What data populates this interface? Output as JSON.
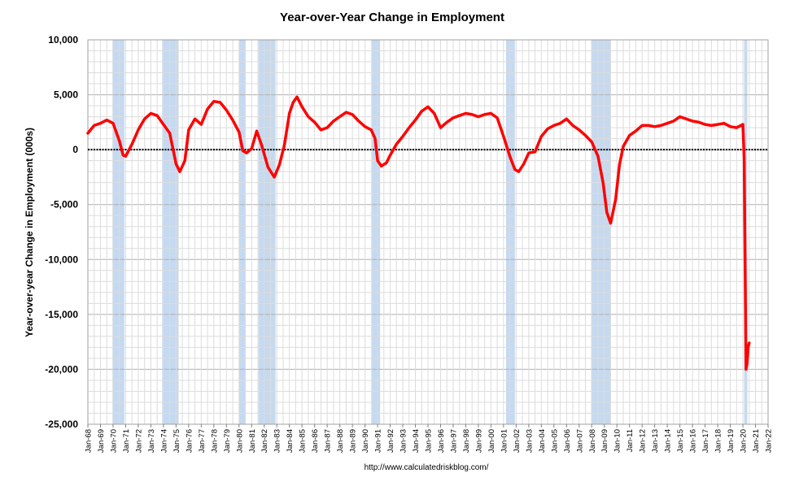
{
  "chart_data": {
    "type": "line",
    "title": "Year-over-Year Change in Employment",
    "ylabel": "Year-over-year Change in Employment (000s)",
    "xlabel": "",
    "source": "http://www.calculatedriskblog.com/",
    "ylim": [
      -25000,
      10000
    ],
    "yticks": [
      10000,
      5000,
      0,
      -5000,
      -10000,
      -15000,
      -20000,
      -25000
    ],
    "ytick_labels": [
      "10,000",
      "5,000",
      "0",
      "-5,000",
      "-10,000",
      "-15,000",
      "-20,000",
      "-25,000"
    ],
    "xlim": [
      1968.0,
      2022.0
    ],
    "xtick_years": [
      1968,
      1969,
      1970,
      1971,
      1972,
      1973,
      1974,
      1975,
      1976,
      1977,
      1978,
      1979,
      1980,
      1981,
      1982,
      1983,
      1984,
      1985,
      1986,
      1987,
      1988,
      1989,
      1990,
      1991,
      1992,
      1993,
      1994,
      1995,
      1996,
      1997,
      1998,
      1999,
      2000,
      2001,
      2002,
      2003,
      2004,
      2005,
      2006,
      2007,
      2008,
      2009,
      2010,
      2011,
      2012,
      2013,
      2014,
      2015,
      2016,
      2017,
      2018,
      2019,
      2020,
      2021,
      2022
    ],
    "xtick_labels": [
      "Jan-68",
      "Jan-69",
      "Jan-70",
      "Jan-71",
      "Jan-72",
      "Jan-73",
      "Jan-74",
      "Jan-75",
      "Jan-76",
      "Jan-77",
      "Jan-78",
      "Jan-79",
      "Jan-80",
      "Jan-81",
      "Jan-82",
      "Jan-83",
      "Jan-84",
      "Jan-85",
      "Jan-86",
      "Jan-87",
      "Jan-88",
      "Jan-89",
      "Jan-90",
      "Jan-91",
      "Jan-92",
      "Jan-93",
      "Jan-94",
      "Jan-95",
      "Jan-96",
      "Jan-97",
      "Jan-98",
      "Jan-99",
      "Jan-00",
      "Jan-01",
      "Jan-02",
      "Jan-03",
      "Jan-04",
      "Jan-05",
      "Jan-06",
      "Jan-07",
      "Jan-08",
      "Jan-09",
      "Jan-10",
      "Jan-11",
      "Jan-12",
      "Jan-13",
      "Jan-14",
      "Jan-15",
      "Jan-16",
      "Jan-17",
      "Jan-18",
      "Jan-19",
      "Jan-20",
      "Jan-21",
      "Jan-22"
    ],
    "grid": true,
    "recessions": [
      [
        1969.95,
        1970.9
      ],
      [
        1973.9,
        1975.2
      ],
      [
        1980.0,
        1980.5
      ],
      [
        1981.55,
        1982.9
      ],
      [
        1990.55,
        1991.2
      ],
      [
        2001.2,
        2001.9
      ],
      [
        2007.95,
        2009.5
      ],
      [
        2020.1,
        2020.35
      ]
    ],
    "colors": {
      "line": "#ff0000",
      "recession": "#c5d9f1",
      "grid": "#c8c8c8",
      "zero_line": "#000000"
    },
    "series": [
      {
        "name": "",
        "x": [
          1968.0,
          1968.5,
          1969.0,
          1969.5,
          1970.0,
          1970.5,
          1970.8,
          1971.0,
          1971.5,
          1972.0,
          1972.5,
          1973.0,
          1973.5,
          1974.0,
          1974.5,
          1975.0,
          1975.3,
          1975.7,
          1976.0,
          1976.5,
          1977.0,
          1977.5,
          1978.0,
          1978.5,
          1979.0,
          1979.5,
          1980.0,
          1980.3,
          1980.6,
          1981.0,
          1981.4,
          1981.8,
          1982.3,
          1982.8,
          1983.2,
          1983.6,
          1984.0,
          1984.3,
          1984.6,
          1985.0,
          1985.5,
          1986.0,
          1986.5,
          1987.0,
          1987.5,
          1988.0,
          1988.5,
          1989.0,
          1989.5,
          1990.0,
          1990.5,
          1990.8,
          1991.0,
          1991.3,
          1991.7,
          1992.0,
          1992.5,
          1993.0,
          1993.5,
          1994.0,
          1994.5,
          1995.0,
          1995.5,
          1996.0,
          1996.5,
          1997.0,
          1997.5,
          1998.0,
          1998.5,
          1999.0,
          1999.5,
          2000.0,
          2000.5,
          2001.0,
          2001.5,
          2001.9,
          2002.2,
          2002.6,
          2003.0,
          2003.5,
          2004.0,
          2004.5,
          2005.0,
          2005.5,
          2006.0,
          2006.5,
          2007.0,
          2007.5,
          2008.0,
          2008.5,
          2008.9,
          2009.2,
          2009.5,
          2009.9,
          2010.2,
          2010.5,
          2011.0,
          2011.5,
          2012.0,
          2012.5,
          2013.0,
          2013.5,
          2014.0,
          2014.5,
          2015.0,
          2015.5,
          2016.0,
          2016.5,
          2017.0,
          2017.5,
          2018.0,
          2018.5,
          2019.0,
          2019.5,
          2020.0,
          2020.1,
          2020.25,
          2020.33,
          2020.42,
          2020.5
        ],
        "values": [
          1500,
          2200,
          2400,
          2700,
          2400,
          800,
          -500,
          -600,
          500,
          1800,
          2800,
          3300,
          3100,
          2300,
          1500,
          -1300,
          -2000,
          -1000,
          1800,
          2800,
          2300,
          3700,
          4400,
          4300,
          3600,
          2700,
          1600,
          -100,
          -300,
          100,
          1700,
          400,
          -1600,
          -2500,
          -1400,
          400,
          3300,
          4300,
          4800,
          3900,
          3000,
          2500,
          1800,
          2000,
          2600,
          3000,
          3400,
          3200,
          2600,
          2100,
          1800,
          1000,
          -1000,
          -1500,
          -1200,
          -500,
          500,
          1200,
          2000,
          2700,
          3500,
          3900,
          3300,
          2000,
          2500,
          2900,
          3100,
          3300,
          3200,
          3000,
          3200,
          3300,
          2900,
          1200,
          -600,
          -1800,
          -2000,
          -1300,
          -300,
          -200,
          1200,
          1900,
          2200,
          2400,
          2800,
          2200,
          1800,
          1300,
          700,
          -600,
          -3000,
          -5700,
          -6700,
          -4500,
          -1400,
          300,
          1300,
          1700,
          2200,
          2200,
          2100,
          2200,
          2400,
          2600,
          3000,
          2800,
          2600,
          2500,
          2300,
          2200,
          2300,
          2400,
          2100,
          2000,
          2300,
          -800,
          -20000,
          -19500,
          -18000,
          -17600
        ]
      }
    ]
  }
}
